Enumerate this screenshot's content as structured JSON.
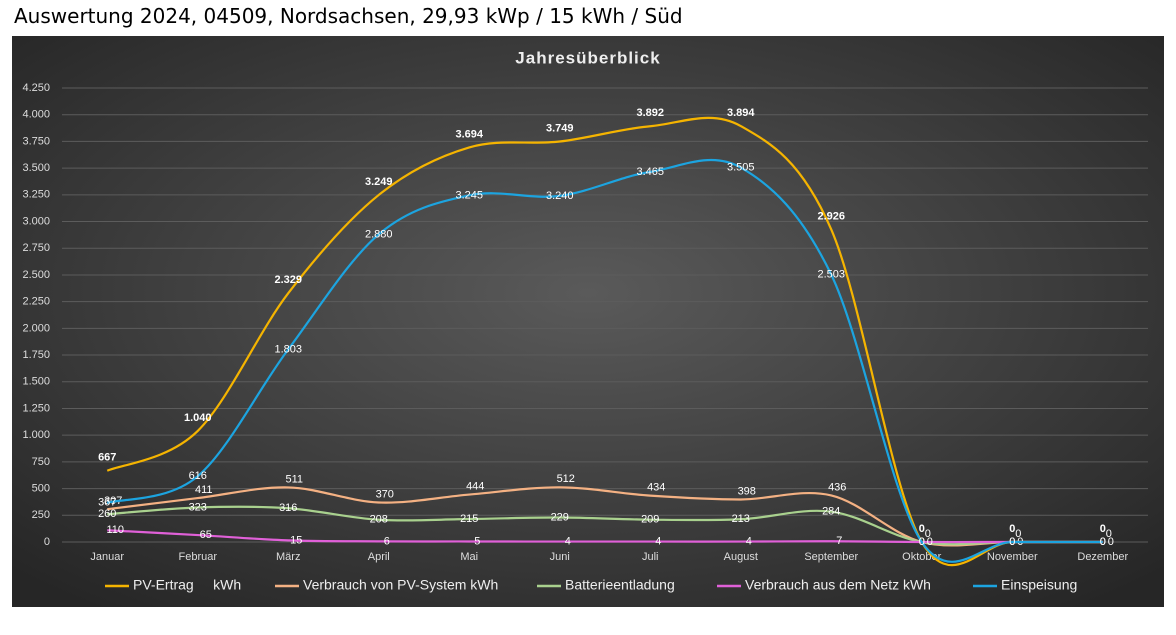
{
  "header": {
    "title": "Auswertung 2024, 04509, Nordsachsen, 29,93 kWp / 15 kWh / Süd"
  },
  "chart_data": {
    "type": "line",
    "title": "Jahresüberblick",
    "smooth": true,
    "grid": true,
    "legend": "bottom",
    "categories": [
      "Januar",
      "Februar",
      "März",
      "April",
      "Mai",
      "Juni",
      "Juli",
      "August",
      "September",
      "Oktober",
      "November",
      "Dezember"
    ],
    "ylim": [
      0,
      4250
    ],
    "yticks": [
      0,
      250,
      500,
      750,
      {
        "value": 1000,
        "label": "1.000"
      },
      {
        "value": 1250,
        "label": "1.250"
      },
      {
        "value": 1500,
        "label": "1.500"
      },
      {
        "value": 1750,
        "label": "1.750"
      },
      {
        "value": 2000,
        "label": "2.000"
      },
      {
        "value": 2250,
        "label": "2.250"
      },
      {
        "value": 2500,
        "label": "2.500"
      },
      {
        "value": 2750,
        "label": "2.750"
      },
      {
        "value": 3000,
        "label": "3.000"
      },
      {
        "value": 3250,
        "label": "3.250"
      },
      {
        "value": 3500,
        "label": "3.500"
      },
      {
        "value": 3750,
        "label": "3.750"
      },
      {
        "value": 4000,
        "label": "4.000"
      },
      {
        "value": 4250,
        "label": "4.250"
      }
    ],
    "series": [
      {
        "name": "PV-Ertrag     kWh",
        "color": "#f5b400",
        "values": [
          667,
          1040,
          2329,
          3249,
          3694,
          3749,
          3892,
          3894,
          2926,
          0,
          0,
          0
        ],
        "value_labels": [
          "667",
          "1.040",
          "2.329",
          "3.249",
          "3.694",
          "3.749",
          "3.892",
          "3.894",
          "2.926",
          "0",
          "0",
          "0"
        ]
      },
      {
        "name": "Verbrauch von PV-System kWh",
        "color": "#f4b183",
        "values": [
          307,
          411,
          511,
          370,
          444,
          512,
          434,
          398,
          436,
          0,
          0,
          0
        ]
      },
      {
        "name": "Batterieentladung",
        "color": "#a9d18e",
        "values": [
          260,
          323,
          316,
          208,
          215,
          229,
          209,
          213,
          284,
          0,
          0,
          0
        ]
      },
      {
        "name": "Verbrauch aus dem Netz kWh",
        "color": "#e060d8",
        "values": [
          110,
          65,
          15,
          6,
          5,
          4,
          4,
          4,
          7,
          0,
          0,
          0
        ]
      },
      {
        "name": "Einspeisung",
        "color": "#1ca4e0",
        "values": [
          367,
          616,
          1803,
          2880,
          3245,
          3240,
          3465,
          3505,
          2503,
          0,
          0,
          0
        ],
        "value_labels": [
          "367",
          "616",
          "1.803",
          "2.880",
          "3.245",
          "3.240",
          "3.465",
          "3.505",
          "2.503",
          "0",
          "0",
          "0"
        ]
      }
    ]
  }
}
